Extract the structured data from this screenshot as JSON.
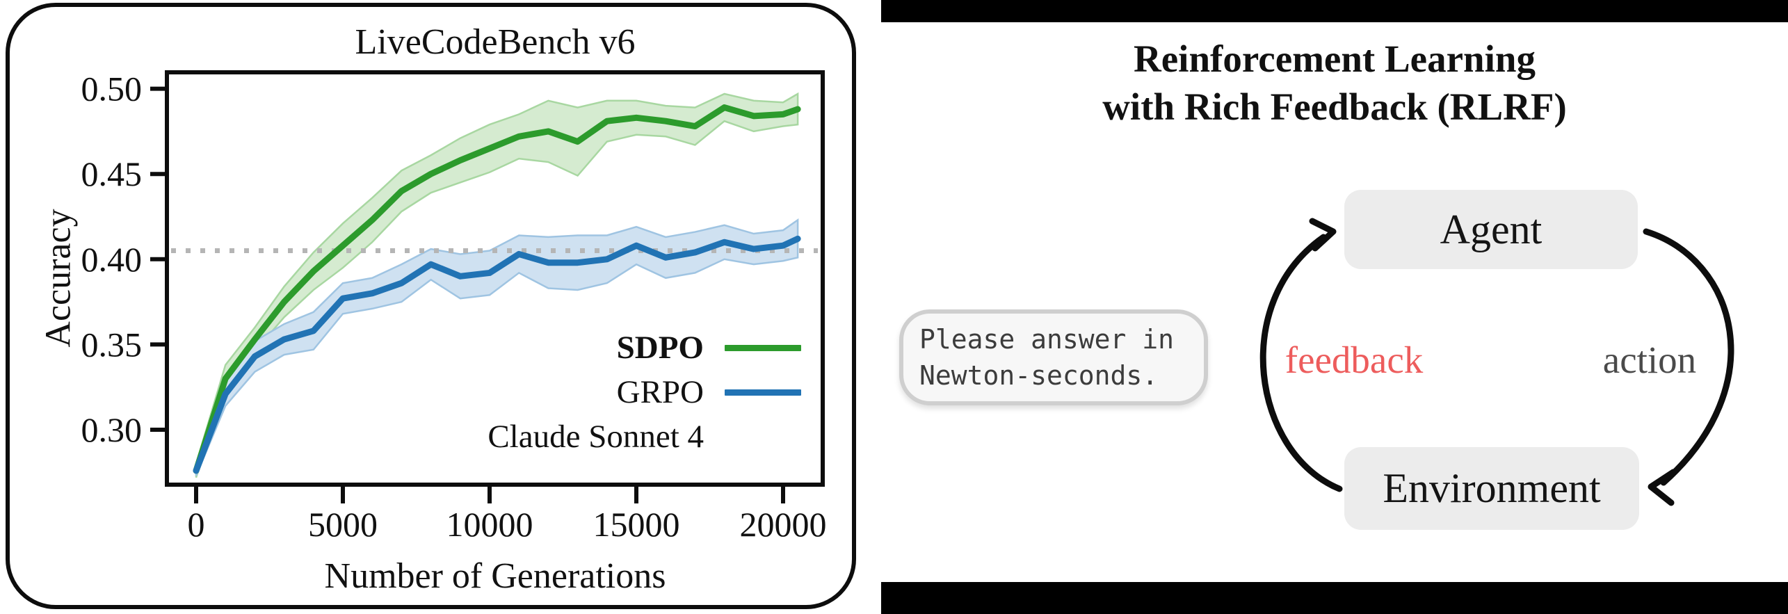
{
  "left_panel": {
    "title": "LiveCodeBench v6",
    "y_label": "Accuracy",
    "x_label": "Number of Generations",
    "legend": [
      {
        "label": "SDPO",
        "style": "solid",
        "color": "#2c9b2c",
        "bold": true
      },
      {
        "label": "GRPO",
        "style": "solid",
        "color": "#2173b4",
        "bold": false
      },
      {
        "label": "Claude Sonnet 4",
        "style": "dotted",
        "color": "#b5b5b5",
        "bold": false
      }
    ]
  },
  "chart_data": {
    "type": "line",
    "title": "LiveCodeBench v6",
    "xlabel": "Number of Generations",
    "ylabel": "Accuracy",
    "xlim": [
      -1000,
      21350
    ],
    "ylim": [
      0.268,
      0.51
    ],
    "grid": false,
    "legend_position": "center right",
    "xticks": {
      "values": [
        0,
        5000,
        10000,
        15000,
        20000
      ],
      "labels": [
        "0",
        "5000",
        "10000",
        "15000",
        "20000"
      ]
    },
    "yticks": {
      "values": [
        0.3,
        0.35,
        0.4,
        0.45,
        0.5
      ],
      "labels": [
        "0.30",
        "0.35",
        "0.40",
        "0.45",
        "0.50"
      ]
    },
    "x": [
      0,
      1000,
      2000,
      3000,
      4000,
      5000,
      6000,
      7000,
      8000,
      9000,
      10000,
      11000,
      12000,
      13000,
      14000,
      15000,
      16000,
      17000,
      18000,
      19000,
      20000,
      20500
    ],
    "series": [
      {
        "name": "SDPO",
        "color": "#2c9b2c",
        "band_fill": "#d5ebd0",
        "band_edge": "#a8d7a1",
        "values": [
          0.276,
          0.33,
          0.353,
          0.375,
          0.393,
          0.408,
          0.423,
          0.44,
          0.45,
          0.458,
          0.465,
          0.472,
          0.475,
          0.469,
          0.481,
          0.483,
          0.481,
          0.478,
          0.489,
          0.484,
          0.485,
          0.488
        ],
        "band": [
          0.004,
          0.008,
          0.007,
          0.009,
          0.011,
          0.013,
          0.013,
          0.012,
          0.011,
          0.013,
          0.014,
          0.013,
          0.018,
          0.02,
          0.012,
          0.01,
          0.009,
          0.011,
          0.008,
          0.009,
          0.007,
          0.009
        ]
      },
      {
        "name": "GRPO",
        "color": "#2173b4",
        "band_fill": "#cfe1f1",
        "band_edge": "#9fc4e2",
        "values": [
          0.276,
          0.321,
          0.343,
          0.353,
          0.358,
          0.377,
          0.38,
          0.386,
          0.397,
          0.39,
          0.392,
          0.403,
          0.398,
          0.398,
          0.4,
          0.408,
          0.401,
          0.404,
          0.41,
          0.406,
          0.408,
          0.412
        ],
        "band": [
          0.003,
          0.007,
          0.009,
          0.009,
          0.011,
          0.009,
          0.009,
          0.011,
          0.009,
          0.013,
          0.013,
          0.011,
          0.015,
          0.016,
          0.014,
          0.011,
          0.012,
          0.012,
          0.01,
          0.009,
          0.009,
          0.011
        ]
      }
    ],
    "baseline": {
      "name": "Claude Sonnet 4",
      "value": 0.405,
      "color": "#b5b5b5",
      "style": "dotted"
    }
  },
  "right_panel": {
    "title_line1": "Reinforcement Learning",
    "title_line2": "with Rich Feedback (RLRF)",
    "bubble_line1": "Please answer in",
    "bubble_line2": "Newton-seconds.",
    "agent_label": "Agent",
    "environment_label": "Environment",
    "feedback_label": "feedback",
    "action_label": "action",
    "feedback_color": "#ed5c5c",
    "action_color": "#4a4a4a"
  }
}
